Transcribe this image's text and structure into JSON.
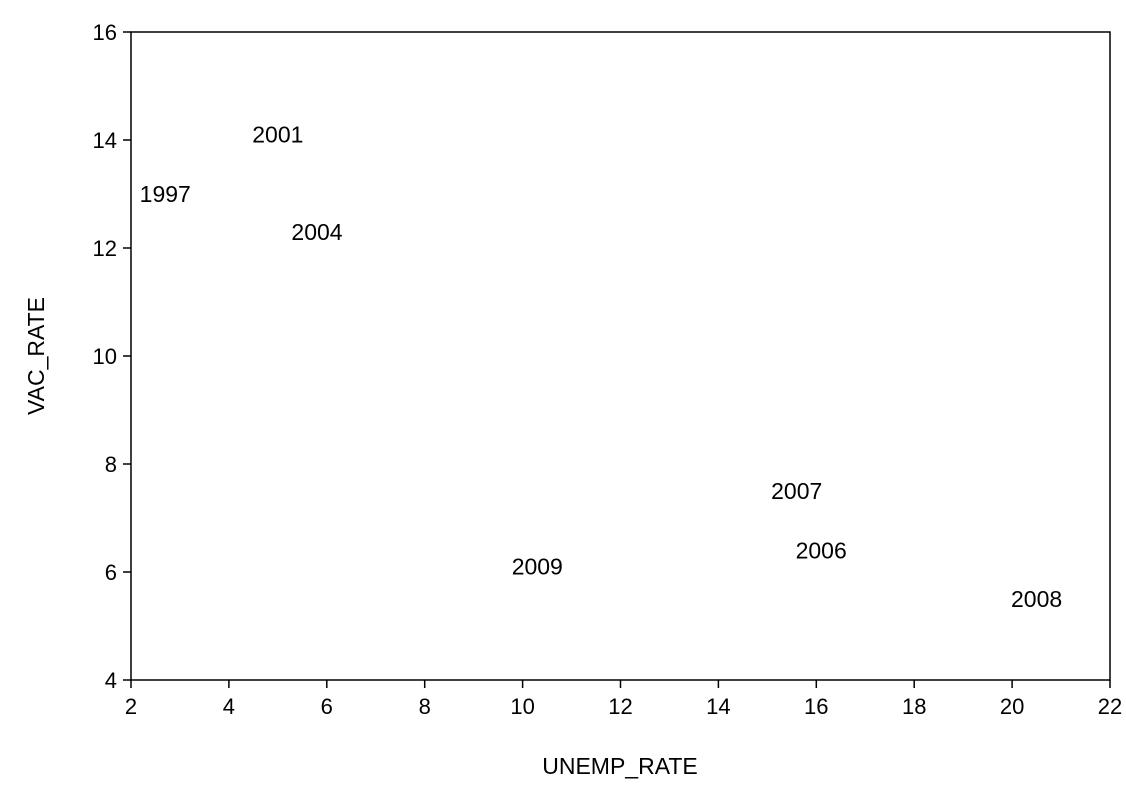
{
  "chart_data": {
    "type": "scatter",
    "marker": "text-label",
    "xlabel": "UNEMP_RATE",
    "ylabel": "VAC_RATE",
    "xlim": [
      2,
      22
    ],
    "ylim": [
      4,
      16
    ],
    "xticks": [
      2,
      4,
      6,
      8,
      10,
      12,
      14,
      16,
      18,
      20,
      22
    ],
    "yticks": [
      4,
      6,
      8,
      10,
      12,
      14,
      16
    ],
    "grid": false,
    "points": [
      {
        "label": "1997",
        "x": 2.7,
        "y": 13.0
      },
      {
        "label": "2001",
        "x": 5.0,
        "y": 14.1
      },
      {
        "label": "2004",
        "x": 5.8,
        "y": 12.3
      },
      {
        "label": "2009",
        "x": 10.3,
        "y": 6.1
      },
      {
        "label": "2007",
        "x": 15.6,
        "y": 7.5
      },
      {
        "label": "2006",
        "x": 16.1,
        "y": 6.4
      },
      {
        "label": "2008",
        "x": 20.5,
        "y": 5.5
      }
    ]
  }
}
